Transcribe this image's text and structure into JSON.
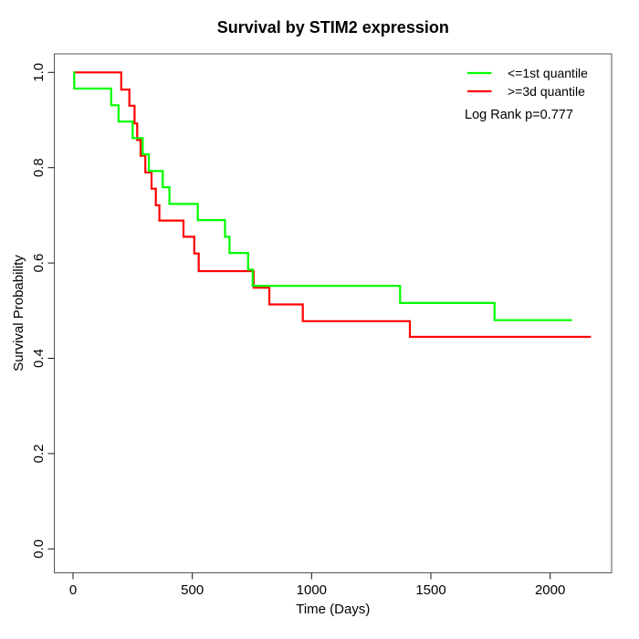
{
  "chart_data": {
    "type": "line",
    "subtype": "kaplan-meier-step",
    "title": "Survival by STIM2 expression",
    "xlabel": "Time (Days)",
    "ylabel": "Survival Probability",
    "xticks": [
      0,
      500,
      1000,
      1500,
      2000
    ],
    "yticks": [
      0,
      0.2,
      0.4,
      0.6,
      0.8,
      1
    ],
    "xlim": [
      -80,
      2258
    ],
    "ylim": [
      -0.05,
      1.04
    ],
    "grid": false,
    "legend_position": "top-right",
    "annotation": "Log Rank p=0.777",
    "series": [
      {
        "name": "<=1st quantile",
        "color": "#00ff00",
        "end_time": 2092,
        "points": [
          [
            0,
            1.0
          ],
          [
            5,
            0.966
          ],
          [
            160,
            0.931
          ],
          [
            191,
            0.897
          ],
          [
            250,
            0.862
          ],
          [
            292,
            0.828
          ],
          [
            318,
            0.793
          ],
          [
            376,
            0.759
          ],
          [
            404,
            0.724
          ],
          [
            523,
            0.69
          ],
          [
            637,
            0.655
          ],
          [
            656,
            0.621
          ],
          [
            734,
            0.586
          ],
          [
            753,
            0.552
          ],
          [
            1371,
            0.516
          ],
          [
            1767,
            0.48
          ]
        ]
      },
      {
        "name": ">=3d quantile",
        "color": "#ff0000",
        "end_time": 2171,
        "points": [
          [
            0,
            1.0
          ],
          [
            202,
            0.964
          ],
          [
            236,
            0.93
          ],
          [
            258,
            0.893
          ],
          [
            269,
            0.858
          ],
          [
            283,
            0.825
          ],
          [
            303,
            0.79
          ],
          [
            329,
            0.756
          ],
          [
            347,
            0.721
          ],
          [
            362,
            0.689
          ],
          [
            463,
            0.655
          ],
          [
            508,
            0.62
          ],
          [
            527,
            0.583
          ],
          [
            757,
            0.548
          ],
          [
            823,
            0.513
          ],
          [
            963,
            0.478
          ],
          [
            1412,
            0.445
          ]
        ]
      }
    ]
  }
}
